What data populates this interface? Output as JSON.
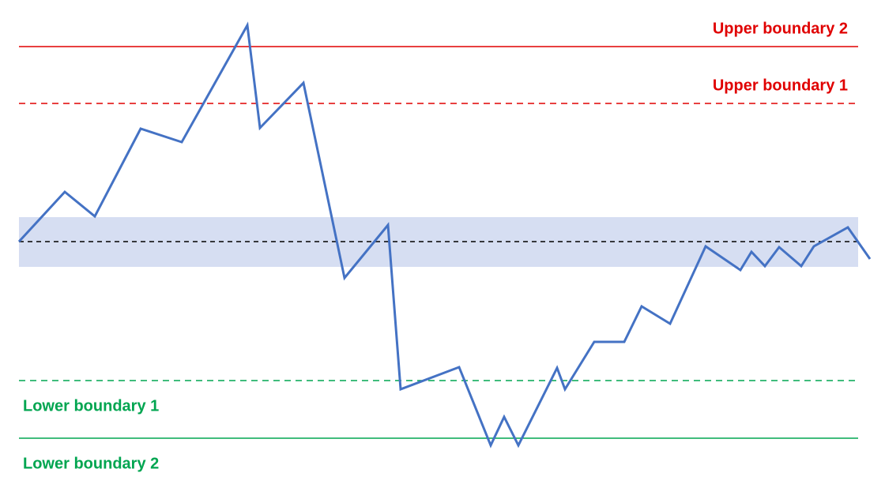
{
  "chart_data": {
    "type": "line",
    "x": [
      24,
      82,
      120,
      178,
      230,
      313,
      329,
      384,
      436,
      491,
      507,
      581,
      621,
      638,
      656,
      705,
      715,
      752,
      790,
      812,
      848,
      893,
      937,
      951,
      968,
      986,
      1014,
      1030,
      1073,
      1101
    ],
    "series": [
      {
        "color": "#4472c4",
        "values": [
          0,
          63,
          32,
          143,
          126,
          274,
          144,
          201,
          -46,
          21,
          -187,
          -159,
          -258,
          -222,
          -258,
          -160,
          -187,
          -127,
          -127,
          -82,
          -104,
          -6,
          -36,
          -13,
          -31,
          -7,
          -31,
          -6,
          18,
          -22
        ]
      }
    ],
    "xlim": [
      0,
      1120
    ],
    "ylim": [
      -307,
      306
    ],
    "center": 0,
    "center_color": "#000000",
    "band": [
      31,
      -32
    ],
    "band_color": "#d6def2",
    "boundaries": [
      {
        "label": "Upper boundary 2",
        "value": 247,
        "color": "#e00000",
        "style": "solid"
      },
      {
        "label": "Upper boundary 1",
        "value": 175,
        "color": "#e00000",
        "style": "dashed"
      },
      {
        "label": "Lower boundary 1",
        "value": -176,
        "color": "#00a550",
        "style": "dashed"
      },
      {
        "label": "Lower boundary 2",
        "value": -249,
        "color": "#00a550",
        "style": "solid"
      }
    ]
  }
}
